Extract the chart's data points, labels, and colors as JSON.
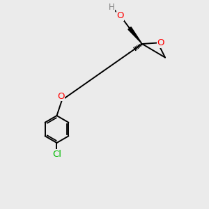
{
  "background_color": "#ebebeb",
  "atom_colors": {
    "O": "#ff0000",
    "Cl": "#00bb00",
    "C": "#000000",
    "H": "#808080"
  },
  "bond_color": "#000000",
  "bond_width": 1.4,
  "font_size_atoms": 8.5,
  "fig_size": [
    3.0,
    3.0
  ],
  "dpi": 100
}
